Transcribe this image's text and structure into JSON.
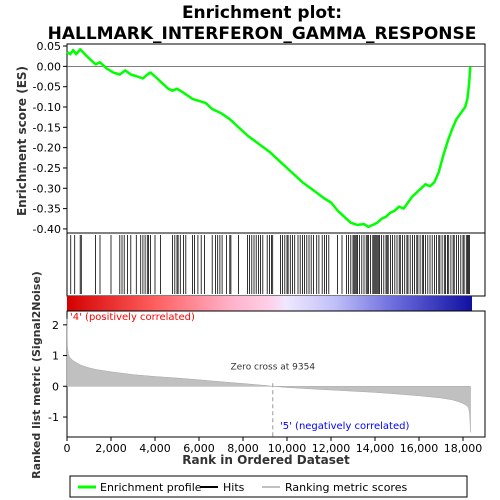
{
  "chart_data": [
    {
      "type": "line",
      "panel": "enrichment-profile",
      "title": "Enrichment plot:\nHALLMARK_INTERFERON_GAMMA_RESPONSE",
      "ylabel": "Enrichment score (ES)",
      "ylim": [
        -0.41,
        0.055
      ],
      "yticks": [
        0.05,
        0.0,
        -0.05,
        -0.1,
        -0.15,
        -0.2,
        -0.25,
        -0.3,
        -0.35,
        -0.4
      ],
      "ytick_labels": [
        "0.05",
        "0.00",
        "-0.05",
        "-0.10",
        "-0.15",
        "-0.20",
        "-0.25",
        "-0.30",
        "-0.35",
        "-0.40"
      ],
      "series": [
        {
          "name": "Enrichment profile",
          "color": "#00ff00",
          "x": [
            0,
            150,
            280,
            420,
            600,
            900,
            1100,
            1300,
            1500,
            1800,
            2100,
            2400,
            2650,
            2900,
            3200,
            3450,
            3650,
            3800,
            4000,
            4300,
            4600,
            4800,
            5000,
            5300,
            5700,
            6000,
            6300,
            6600,
            7000,
            7400,
            7800,
            8200,
            8700,
            9200,
            9700,
            10200,
            10700,
            11200,
            11700,
            12000,
            12300,
            12600,
            12900,
            13200,
            13500,
            13700,
            13900,
            14100,
            14300,
            14500,
            14700,
            14900,
            15100,
            15300,
            15500,
            15700,
            15900,
            16100,
            16300,
            16500,
            16700,
            16900,
            17100,
            17300,
            17500,
            17700,
            17900,
            18100,
            18200,
            18280,
            18330
          ],
          "y": [
            0.035,
            0.03,
            0.04,
            0.03,
            0.042,
            0.025,
            0.015,
            0.005,
            0.01,
            -0.005,
            -0.015,
            -0.02,
            -0.01,
            -0.02,
            -0.025,
            -0.03,
            -0.02,
            -0.015,
            -0.025,
            -0.04,
            -0.055,
            -0.06,
            -0.055,
            -0.065,
            -0.08,
            -0.085,
            -0.09,
            -0.105,
            -0.115,
            -0.13,
            -0.15,
            -0.17,
            -0.19,
            -0.21,
            -0.235,
            -0.26,
            -0.285,
            -0.305,
            -0.325,
            -0.335,
            -0.355,
            -0.37,
            -0.385,
            -0.39,
            -0.388,
            -0.395,
            -0.39,
            -0.385,
            -0.375,
            -0.37,
            -0.36,
            -0.355,
            -0.345,
            -0.35,
            -0.335,
            -0.32,
            -0.31,
            -0.3,
            -0.29,
            -0.295,
            -0.285,
            -0.26,
            -0.22,
            -0.185,
            -0.155,
            -0.13,
            -0.115,
            -0.1,
            -0.08,
            -0.04,
            0.0
          ]
        }
      ]
    },
    {
      "type": "scatter",
      "panel": "hits",
      "series": [
        {
          "name": "Hits",
          "color": "#000000",
          "x": [
            170,
            350,
            600,
            650,
            1300,
            1500,
            2000,
            2400,
            2500,
            2600,
            2750,
            2900,
            3150,
            3350,
            3450,
            3550,
            3650,
            3700,
            3800,
            4000,
            4250,
            4800,
            4900,
            5000,
            5050,
            5150,
            5300,
            5400,
            5700,
            5800,
            5950,
            6100,
            6250,
            6600,
            6750,
            6850,
            6950,
            7050,
            7250,
            7400,
            7450,
            7800,
            8200,
            8300,
            8400,
            8500,
            8600,
            8700,
            8800,
            8900,
            9100,
            9200,
            9300,
            9350,
            9700,
            9800,
            9900,
            10000,
            10050,
            10150,
            10250,
            10350,
            10500,
            10600,
            10700,
            10800,
            10900,
            11000,
            11100,
            11200,
            11350,
            11450,
            11600,
            11700,
            11800,
            11900,
            12300,
            12500,
            12700,
            12800,
            12900,
            13000,
            13050,
            13100,
            13150,
            13200,
            13300,
            13400,
            13500,
            13600,
            13650,
            13700,
            13800,
            13900,
            13950,
            14000,
            14050,
            14100,
            14150,
            14200,
            14300,
            14400,
            14500,
            14550,
            14600,
            14700,
            14800,
            14900,
            15000,
            15100,
            15150,
            15250,
            15350,
            15450,
            15500,
            15600,
            15700,
            15800,
            15900,
            15950,
            16050,
            16150,
            16200,
            16300,
            16400,
            16500,
            16600,
            16700,
            16800,
            16900,
            16950,
            17050,
            17150,
            17200,
            17300,
            17350,
            17450,
            17550,
            17600,
            17700,
            17800,
            17900,
            18000,
            18050,
            18150,
            18200,
            18250,
            18300
          ]
        }
      ]
    },
    {
      "type": "bar",
      "panel": "ranked-list-metric",
      "xlabel": "Rank in Ordered Dataset",
      "ylabel": "Ranked list metric (Signal2Noise)",
      "xlim": [
        0,
        19000
      ],
      "ylim": [
        -1.65,
        2.45
      ],
      "xticks": [
        0,
        2000,
        4000,
        6000,
        8000,
        10000,
        12000,
        14000,
        16000,
        18000
      ],
      "xtick_labels": [
        "0",
        "2,000",
        "4,000",
        "6,000",
        "8,000",
        "10,000",
        "12,000",
        "14,000",
        "16,000",
        "18,000"
      ],
      "yticks": [
        2,
        1,
        0,
        -1
      ],
      "ytick_labels": [
        "2",
        "1",
        "0",
        "-1"
      ],
      "series": [
        {
          "name": "Ranking metric scores",
          "color": "#c0c0c0",
          "x": [
            0,
            20,
            60,
            120,
            250,
            400,
            600,
            900,
            1300,
            2000,
            3000,
            4000,
            5000,
            6000,
            7000,
            8000,
            9000,
            9354,
            10000,
            11000,
            12000,
            13000,
            14000,
            15000,
            16000,
            17000,
            17500,
            17800,
            18000,
            18150,
            18250,
            18300,
            18340
          ],
          "values": [
            2.2,
            1.3,
            1.05,
            0.95,
            0.85,
            0.78,
            0.7,
            0.62,
            0.55,
            0.47,
            0.38,
            0.32,
            0.27,
            0.21,
            0.15,
            0.09,
            0.03,
            0.0,
            -0.04,
            -0.08,
            -0.12,
            -0.16,
            -0.2,
            -0.25,
            -0.31,
            -0.38,
            -0.44,
            -0.5,
            -0.56,
            -0.62,
            -0.7,
            -0.9,
            -1.5
          ]
        }
      ]
    }
  ],
  "zero_cross_label": "Zero cross at 9354",
  "zero_cross_rank": 9354,
  "positive_label": "'4' (positively correlated)",
  "negative_label": "'5' (negatively correlated)",
  "dataset_size": 18340,
  "colors": {
    "enrichment_line": "#00ff00",
    "positive_label": "#ff0000",
    "negative_label": "#0000ff",
    "metric_fill": "#c0c0c0"
  },
  "legend": {
    "placement": "bottom",
    "items": [
      {
        "label": "Enrichment profile",
        "color": "#00ff00",
        "icon": "green-line-icon"
      },
      {
        "label": "Hits",
        "color": "#000000",
        "icon": "black-line-icon"
      },
      {
        "label": "Ranking metric scores",
        "color": "#c0c0c0",
        "icon": "gray-line-icon"
      }
    ]
  }
}
